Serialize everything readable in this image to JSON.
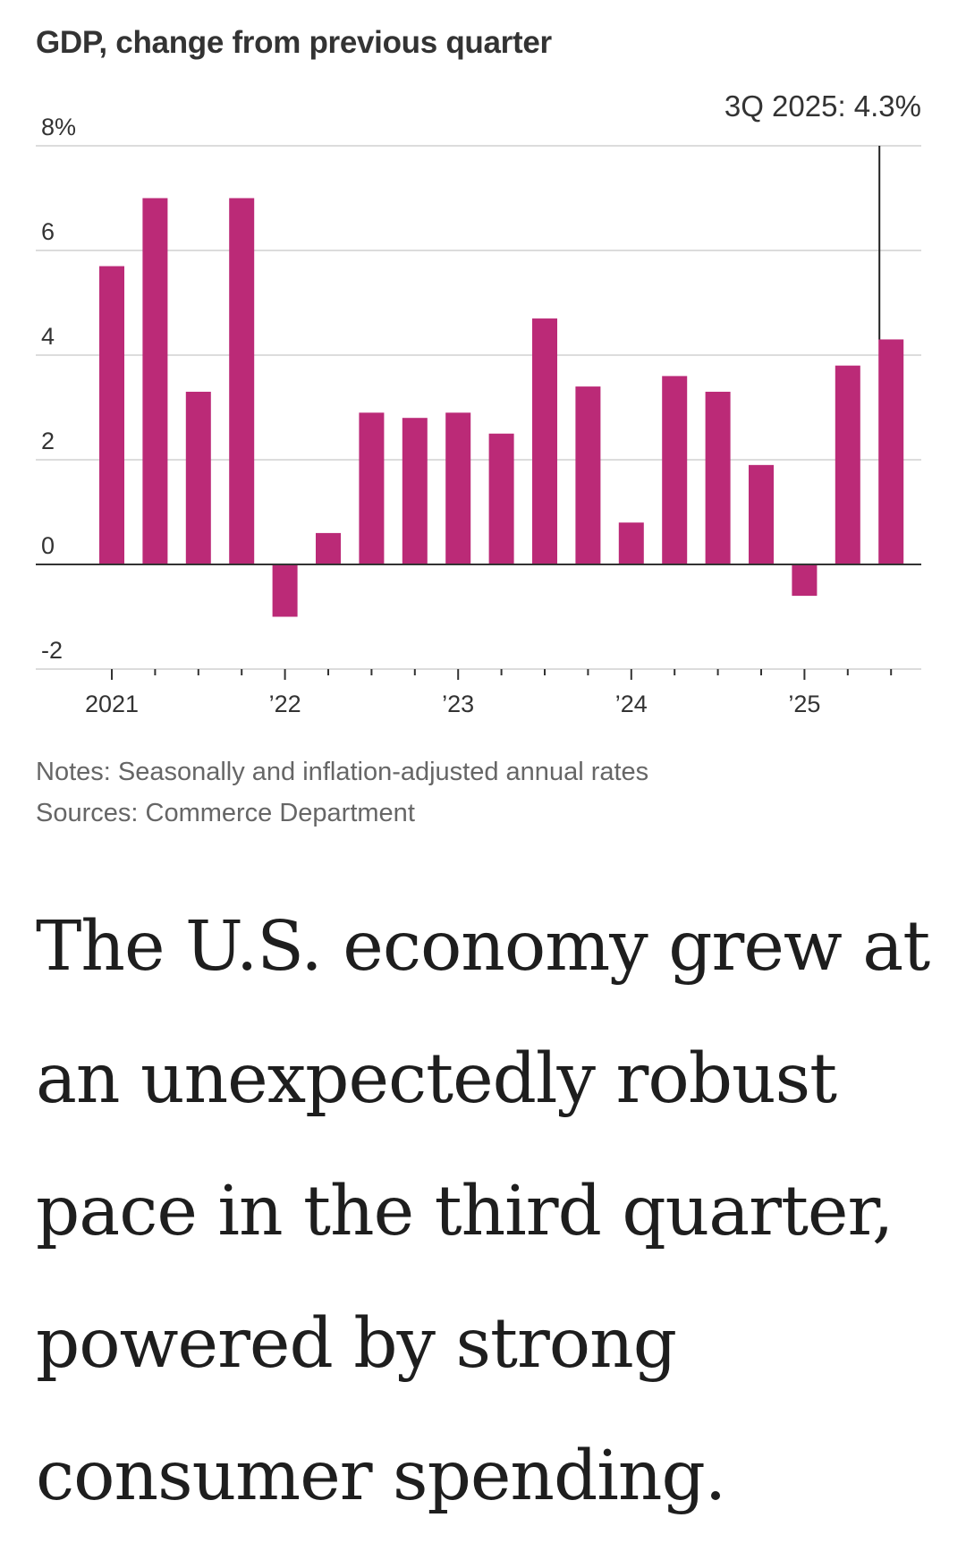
{
  "chart_data": {
    "type": "bar",
    "title": "GDP, change from previous quarter",
    "categories": [
      "1Q 2021",
      "2Q 2021",
      "3Q 2021",
      "4Q 2021",
      "1Q 2022",
      "2Q 2022",
      "3Q 2022",
      "4Q 2022",
      "1Q 2023",
      "2Q 2023",
      "3Q 2023",
      "4Q 2023",
      "1Q 2024",
      "2Q 2024",
      "3Q 2024",
      "4Q 2024",
      "1Q 2025",
      "2Q 2025",
      "3Q 2025"
    ],
    "values": [
      5.7,
      7.0,
      3.3,
      7.0,
      -1.0,
      0.6,
      2.9,
      2.8,
      2.9,
      2.5,
      4.7,
      3.4,
      0.8,
      3.6,
      3.3,
      1.9,
      -0.6,
      3.8,
      4.3
    ],
    "ylim": [
      -2,
      8
    ],
    "yticks": [
      8,
      6,
      4,
      2,
      0,
      -2
    ],
    "ytick_labels": [
      "8%",
      "6",
      "4",
      "2",
      "0",
      "-2"
    ],
    "xlabels": [
      "2021",
      "’22",
      "’23",
      "’24",
      "’25"
    ],
    "xlabel_quarter_index": [
      0,
      4,
      8,
      12,
      16
    ],
    "xlabel": "",
    "ylabel": "",
    "annotation": {
      "label": "3Q 2025: 4.3%",
      "index": 18
    },
    "bar_color": "#bb2a77"
  },
  "notes": {
    "note": "Notes: Seasonally and inflation-adjusted annual rates",
    "source": "Sources: Commerce Department"
  },
  "headline": "The U.S. economy grew at an unexpectedly robust pace in the third quarter, powered by strong consumer spending."
}
